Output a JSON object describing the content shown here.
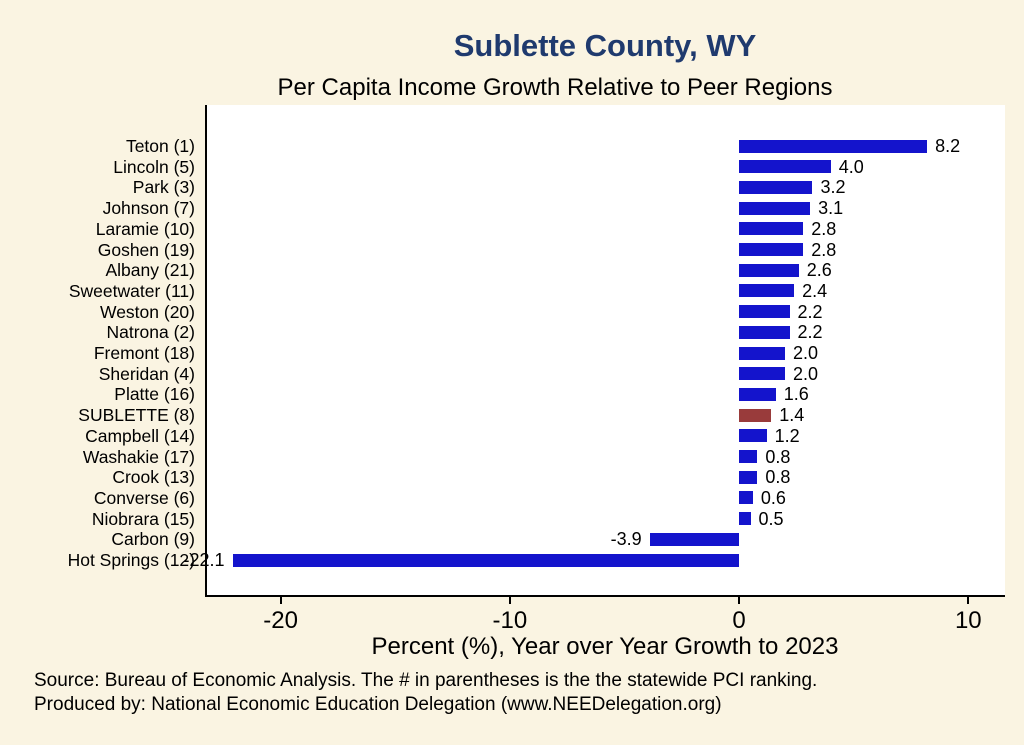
{
  "title": "Sublette County, WY",
  "subtitle": "Per Capita Income Growth Relative to Peer Regions",
  "footer": {
    "source": "Source: Bureau of Economic Analysis. The # in parentheses is the the statewide PCI ranking.",
    "produced": "Produced by: National Economic Education Delegation (www.NEEDelegation.org)"
  },
  "colors": {
    "bar": "#1414CC",
    "highlight": "#993B3B",
    "title": "#1F3A6E",
    "background": "#FAF4E2"
  },
  "chart_data": {
    "type": "bar",
    "orientation": "horizontal",
    "title": "Sublette County, WY",
    "subtitle": "Per Capita Income Growth Relative to Peer Regions",
    "xlabel": "Percent (%), Year over Year Growth to 2023",
    "categories": [
      "Teton  (1)",
      "Lincoln  (5)",
      "Park  (3)",
      "Johnson  (7)",
      "Laramie (10)",
      "Goshen (19)",
      "Albany (21)",
      "Sweetwater (11)",
      "Weston (20)",
      "Natrona  (2)",
      "Fremont (18)",
      "Sheridan  (4)",
      "Platte (16)",
      "SUBLETTE  (8)",
      "Campbell (14)",
      "Washakie (17)",
      "Crook (13)",
      "Converse  (6)",
      "Niobrara (15)",
      "Carbon  (9)",
      "Hot Springs (12)"
    ],
    "values": [
      8.2,
      4.0,
      3.2,
      3.1,
      2.8,
      2.8,
      2.6,
      2.4,
      2.2,
      2.2,
      2.0,
      2.0,
      1.6,
      1.4,
      1.2,
      0.8,
      0.8,
      0.6,
      0.5,
      -3.9,
      -22.1
    ],
    "highlight_category": "SUBLETTE  (8)",
    "xticks": [
      -20,
      -10,
      0,
      10
    ],
    "xlim": [
      -23.3,
      11.6
    ],
    "grid": false,
    "legend": false
  }
}
